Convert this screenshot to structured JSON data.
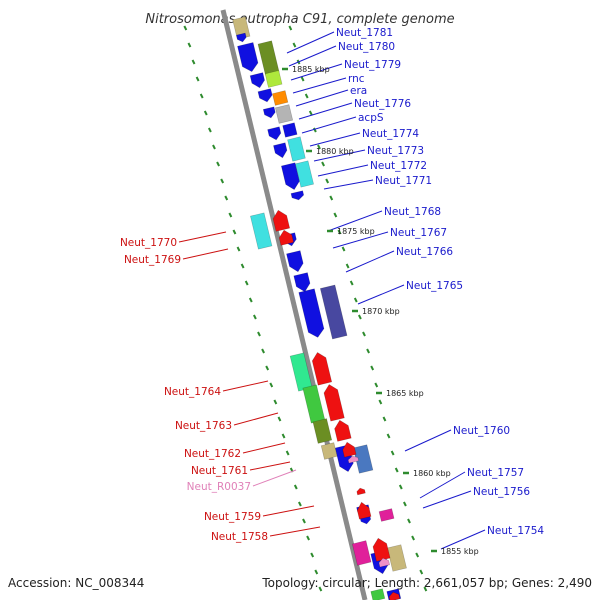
{
  "title": "Nitrosomonas eutropha C91, complete genome",
  "footer": {
    "accession": "Accession: NC_008344",
    "summary": "Topology: circular; Length: 2,661,057 bp; Genes: 2,490"
  },
  "colors": {
    "backbone": "#888888",
    "forward_label": "#1a1acc",
    "reverse_label": "#cc1111",
    "rna_label": "#e080b8",
    "tick": "#2e8b2e"
  },
  "kbp_marks": [
    {
      "label": "1885 kbp",
      "strand": "forward"
    },
    {
      "label": "1880 kbp",
      "strand": "forward"
    },
    {
      "label": "1875 kbp",
      "strand": "forward"
    },
    {
      "label": "1870 kbp",
      "strand": "forward"
    },
    {
      "label": "1865 kbp",
      "strand": "forward"
    },
    {
      "label": "1860 kbp",
      "strand": "forward"
    },
    {
      "label": "1855 kbp",
      "strand": "forward"
    }
  ],
  "forward_genes": [
    {
      "name": "Neut_1781",
      "color": "#c8b87a"
    },
    {
      "name": "Neut_1780",
      "color": "#6b8e23"
    },
    {
      "name": "Neut_1779",
      "color": "#aee83c"
    },
    {
      "name": "rnc",
      "color": "#1010e0"
    },
    {
      "name": "era",
      "color": "#ff8c00"
    },
    {
      "name": "Neut_1776",
      "color": "#b4b4b4"
    },
    {
      "name": "acpS",
      "color": "#1010e0"
    },
    {
      "name": "Neut_1774",
      "color": "#1010e0"
    },
    {
      "name": "Neut_1773",
      "color": "#40e0e0"
    },
    {
      "name": "Neut_1772",
      "color": "#1010e0"
    },
    {
      "name": "Neut_1771",
      "color": "#40e0e0"
    },
    {
      "name": "Neut_1768",
      "color": "#1010e0"
    },
    {
      "name": "Neut_1767",
      "color": "#1010e0"
    },
    {
      "name": "Neut_1766",
      "color": "#1010e0"
    },
    {
      "name": "Neut_1765",
      "color": "#4848a0"
    },
    {
      "name": "Neut_1760",
      "color": "#4a78c0"
    },
    {
      "name": "Neut_1757",
      "color": "#1010e0"
    },
    {
      "name": "Neut_1756",
      "color": "#e0209a"
    },
    {
      "name": "Neut_1754",
      "color": "#c8b87a"
    }
  ],
  "reverse_genes": [
    {
      "name": "Neut_1770",
      "color": "#40e0e0"
    },
    {
      "name": "Neut_1769",
      "color": "#ee1111"
    },
    {
      "name": "Neut_1764",
      "color": "#30e890"
    },
    {
      "name": "Neut_1763",
      "color": "#40c840"
    },
    {
      "name": "Neut_1762",
      "color": "#6b8e23"
    },
    {
      "name": "Neut_1761",
      "color": "#ee1111"
    },
    {
      "name": "Neut_R0037",
      "color": "#f090c8"
    },
    {
      "name": "Neut_1759",
      "color": "#ee1111"
    },
    {
      "name": "Neut_1758",
      "color": "#e0209a"
    }
  ]
}
